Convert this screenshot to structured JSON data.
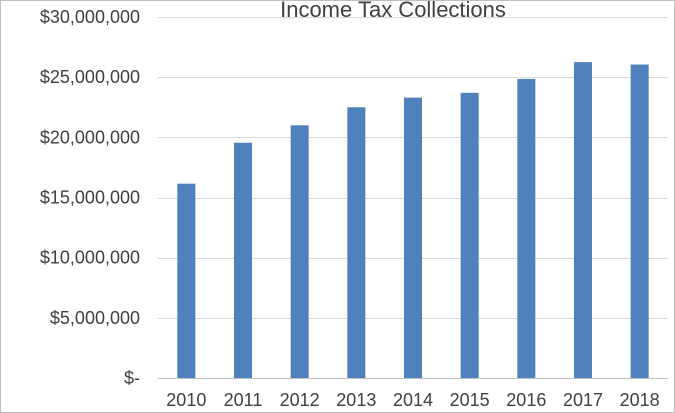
{
  "chart_data": {
    "type": "bar",
    "title": "Income Tax Collections",
    "xlabel": "",
    "ylabel": "",
    "categories": [
      "2010",
      "2011",
      "2012",
      "2013",
      "2014",
      "2015",
      "2016",
      "2017",
      "2018"
    ],
    "values": [
      16150000,
      19550000,
      21000000,
      22500000,
      23300000,
      23700000,
      24850000,
      26250000,
      26050000
    ],
    "ylim": [
      0,
      30000000
    ],
    "ytick_values": [
      0,
      5000000,
      10000000,
      15000000,
      20000000,
      25000000,
      30000000
    ],
    "ytick_labels": [
      "$-",
      "$5,000,000",
      "$10,000,000",
      "$15,000,000",
      "$20,000,000",
      "$25,000,000",
      "$30,000,000"
    ],
    "grid": true,
    "legend": "none",
    "colors": {
      "bar": "#4F81BD",
      "grid": "#D9D9D9",
      "axis": "#BFBFBF",
      "text": "#404040",
      "border": "#BFBFBF"
    }
  }
}
